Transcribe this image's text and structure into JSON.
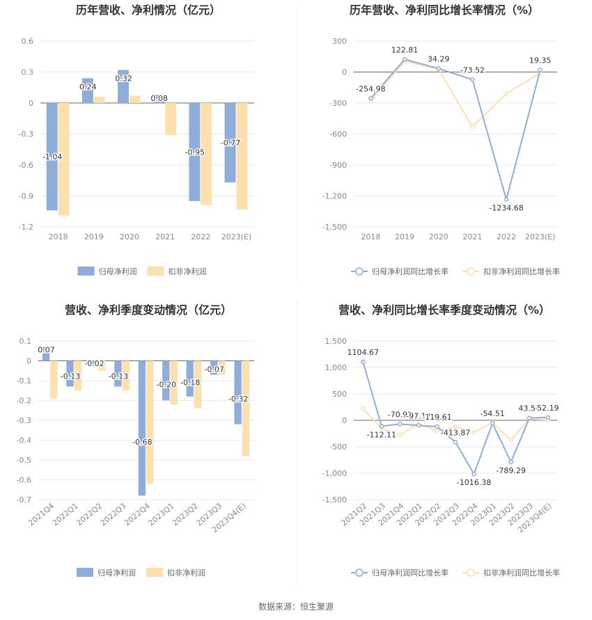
{
  "colors": {
    "primary": "#8eadd9",
    "secondary": "#fde0ad",
    "grid": "#e6e9f0",
    "axis": "#666666",
    "divider": "#eeeeee"
  },
  "legend": {
    "bar_primary": "归母净利润",
    "bar_secondary": "扣非净利润",
    "line_primary": "归母净利润同比增长率",
    "line_secondary": "扣非净利润同比增长率"
  },
  "footer": {
    "source": "数据来源：恒生聚源"
  },
  "chart_data": [
    {
      "id": "annual-profit",
      "type": "bar",
      "title": "历年营收、净利情况（亿元）",
      "categories": [
        "2018",
        "2019",
        "2020",
        "2021",
        "2022",
        "2023(E)"
      ],
      "ylim": [
        -1.2,
        0.6
      ],
      "yticks": [
        0.6,
        0.3,
        0,
        -0.3,
        -0.6,
        -0.9,
        -1.2
      ],
      "ytick_labels": [
        "0.6",
        "0.3",
        "0",
        "-0.3",
        "-0.6",
        "-0.9",
        "-1.2"
      ],
      "series": [
        {
          "name": "归母净利润",
          "values": [
            -1.04,
            0.24,
            0.32,
            0.08,
            -0.95,
            -0.77
          ],
          "labels": [
            "-1.04",
            "0.24",
            "0.32",
            "0.08",
            "-0.95",
            "-0.77"
          ]
        },
        {
          "name": "扣非净利润",
          "values": [
            -1.09,
            0.06,
            0.07,
            -0.31,
            -0.99,
            -1.03
          ]
        }
      ]
    },
    {
      "id": "annual-growth",
      "type": "line",
      "title": "历年营收、净利同比增长率情况（%）",
      "categories": [
        "2018",
        "2019",
        "2020",
        "2021",
        "2022",
        "2023(E)"
      ],
      "ylim": [
        -1500,
        300
      ],
      "yticks": [
        300,
        0,
        -300,
        -600,
        -900,
        -1200,
        -1500
      ],
      "ytick_labels": [
        "300",
        "0",
        "-300",
        "-600",
        "-900",
        "-1,200",
        "-1,500"
      ],
      "series": [
        {
          "name": "归母净利润同比增长率",
          "values": [
            -254.98,
            122.81,
            34.29,
            -73.52,
            -1234.68,
            19.35
          ],
          "labels": [
            "-254.98",
            "122.81",
            "34.29",
            "-73.52",
            "-1234.68",
            "19.35"
          ]
        },
        {
          "name": "扣非净利润同比增长率",
          "values": [
            -280,
            105,
            25,
            -530,
            -210,
            -10
          ]
        }
      ]
    },
    {
      "id": "quarterly-profit",
      "type": "bar",
      "title": "营收、净利季度变动情况（亿元）",
      "categories": [
        "2021Q4",
        "2022Q1",
        "2022Q2",
        "2022Q3",
        "2022Q4",
        "2023Q1",
        "2023Q2",
        "2023Q3",
        "2023Q4(E)"
      ],
      "ylim": [
        -0.7,
        0.1
      ],
      "yticks": [
        0.1,
        0,
        -0.1,
        -0.2,
        -0.3,
        -0.4,
        -0.5,
        -0.6,
        -0.7
      ],
      "ytick_labels": [
        "0.1",
        "0",
        "-0.1",
        "-0.2",
        "-0.3",
        "-0.4",
        "-0.5",
        "-0.6",
        "-0.7"
      ],
      "series": [
        {
          "name": "归母净利润",
          "values": [
            0.07,
            -0.13,
            -0.02,
            -0.13,
            -0.68,
            -0.2,
            -0.18,
            -0.07,
            -0.32
          ],
          "labels": [
            "0.07",
            "-0.13",
            "-0.02",
            "-0.13",
            "-0.68",
            "-0.20",
            "-0.18",
            "-0.07",
            "-0.32"
          ]
        },
        {
          "name": "扣非净利润",
          "values": [
            -0.19,
            -0.15,
            -0.05,
            -0.15,
            -0.62,
            -0.22,
            -0.24,
            -0.07,
            -0.48
          ]
        }
      ]
    },
    {
      "id": "quarterly-growth",
      "type": "line",
      "title": "营收、净利同比增长率季度变动情况（%）",
      "categories": [
        "2021Q2",
        "2021Q3",
        "2021Q4",
        "2022Q1",
        "2022Q2",
        "2022Q3",
        "2022Q4",
        "2023Q1",
        "2023Q2",
        "2023Q3",
        "2023Q4(E)"
      ],
      "ylim": [
        -1500,
        1500
      ],
      "yticks": [
        1500,
        1000,
        500,
        0,
        -500,
        -1000,
        -1500
      ],
      "ytick_labels": [
        "1,500",
        "1,000",
        "500",
        "0",
        "-500",
        "-1,000",
        "-1,500"
      ],
      "series": [
        {
          "name": "归母净利润同比增长率",
          "values": [
            1104.67,
            -112.11,
            -70.92,
            -97.12,
            -119.61,
            -413.87,
            -1016.38,
            -54.51,
            -789.29,
            43.54,
            52.19
          ],
          "labels": [
            "1104.67",
            "-112.11",
            "-70.92",
            "-97.12",
            "-119.61",
            "-413.87",
            "-1016.38",
            "-54.51",
            "-789.29",
            "43.54",
            "52.19"
          ]
        },
        {
          "name": "扣非净利润同比增长率",
          "values": [
            220,
            -150,
            -280,
            -60,
            -200,
            -120,
            -230,
            -40,
            -370,
            20,
            10
          ]
        }
      ]
    }
  ]
}
